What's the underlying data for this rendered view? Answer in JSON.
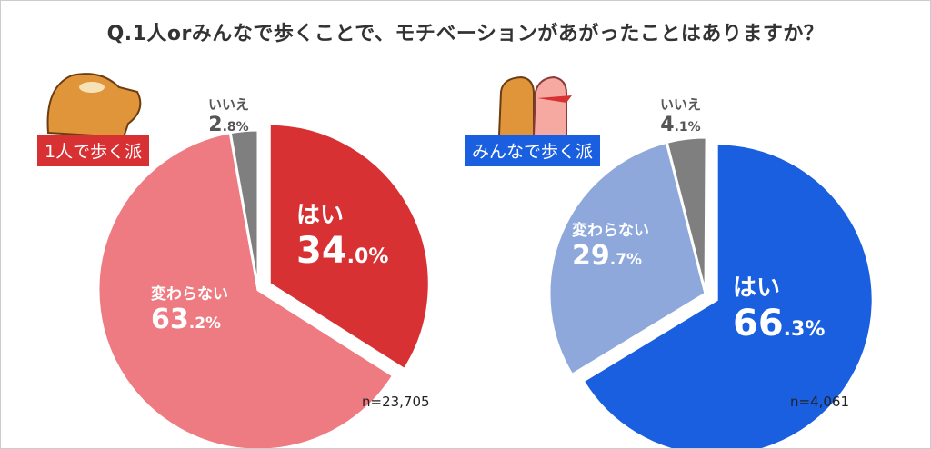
{
  "title": "Q.1人orみんなで歩くことで、モチベーションがあがったことはありますか？",
  "chart_data": [
    {
      "type": "pie",
      "group": "1人で歩く派",
      "n_label": "n=23,705",
      "slices": [
        {
          "label": "はい",
          "value": 34.0,
          "int": "34",
          "dec": ".0%",
          "color": "#d83134",
          "exploded": true
        },
        {
          "label": "変わらない",
          "value": 63.2,
          "int": "63",
          "dec": ".2%",
          "color": "#ee7b82"
        },
        {
          "label": "いいえ",
          "value": 2.8,
          "int": "2",
          "dec": ".8%",
          "color": "#7f7f7f"
        }
      ],
      "badge_color": "#d83134"
    },
    {
      "type": "pie",
      "group": "みんなで歩く派",
      "n_label": "n=4,061",
      "slices": [
        {
          "label": "はい",
          "value": 66.3,
          "int": "66",
          "dec": ".3%",
          "color": "#1a5fe0",
          "exploded": true
        },
        {
          "label": "変わらない",
          "value": 29.7,
          "int": "29",
          "dec": ".7%",
          "color": "#8ea8dc"
        },
        {
          "label": "いいえ",
          "value": 4.1,
          "int": "4",
          "dec": ".1%",
          "color": "#7f7f7f"
        }
      ],
      "badge_color": "#1a5fe0"
    }
  ]
}
